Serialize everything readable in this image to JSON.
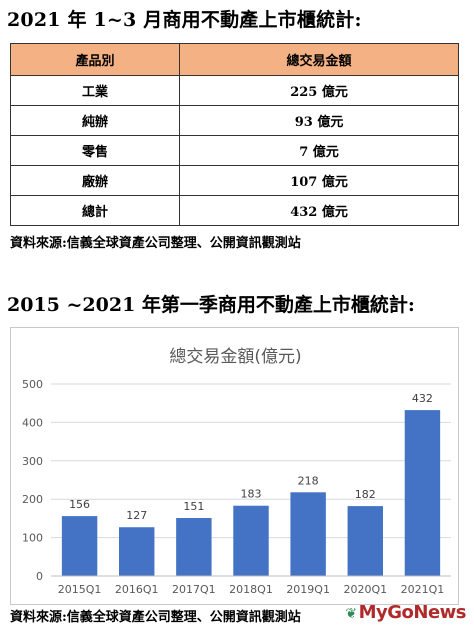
{
  "table_section": {
    "title": "2021 年 1~3 月商用不動產上市櫃統計:",
    "headers": [
      "產品別",
      "總交易金額"
    ],
    "rows": [
      {
        "category": "工業",
        "amount": "225 億元"
      },
      {
        "category": "純辦",
        "amount": "93 億元"
      },
      {
        "category": "零售",
        "amount": "7 億元"
      },
      {
        "category": "廠辦",
        "amount": "107 億元"
      },
      {
        "category": "總計",
        "amount": "432 億元"
      }
    ],
    "source": "資料來源:信義全球資產公司整理、公開資訊觀測站"
  },
  "chart_section": {
    "title": "2015 ~2021 年第一季商用不動產上市櫃統計:",
    "source": "資料來源:信義全球資產公司整理、公開資訊觀測站"
  },
  "watermark": {
    "text": "MyGoNews"
  },
  "colors": {
    "bar": "#4472c4",
    "header_bg": "#f4b183"
  },
  "chart_data": {
    "type": "bar",
    "title": "總交易金額(億元)",
    "categories": [
      "2015Q1",
      "2016Q1",
      "2017Q1",
      "2018Q1",
      "2019Q1",
      "2020Q1",
      "2021Q1"
    ],
    "values": [
      156,
      127,
      151,
      183,
      218,
      182,
      432
    ],
    "ylim": [
      0,
      500
    ],
    "yticks": [
      0,
      100,
      200,
      300,
      400,
      500
    ],
    "grid": true,
    "legend": "none"
  }
}
